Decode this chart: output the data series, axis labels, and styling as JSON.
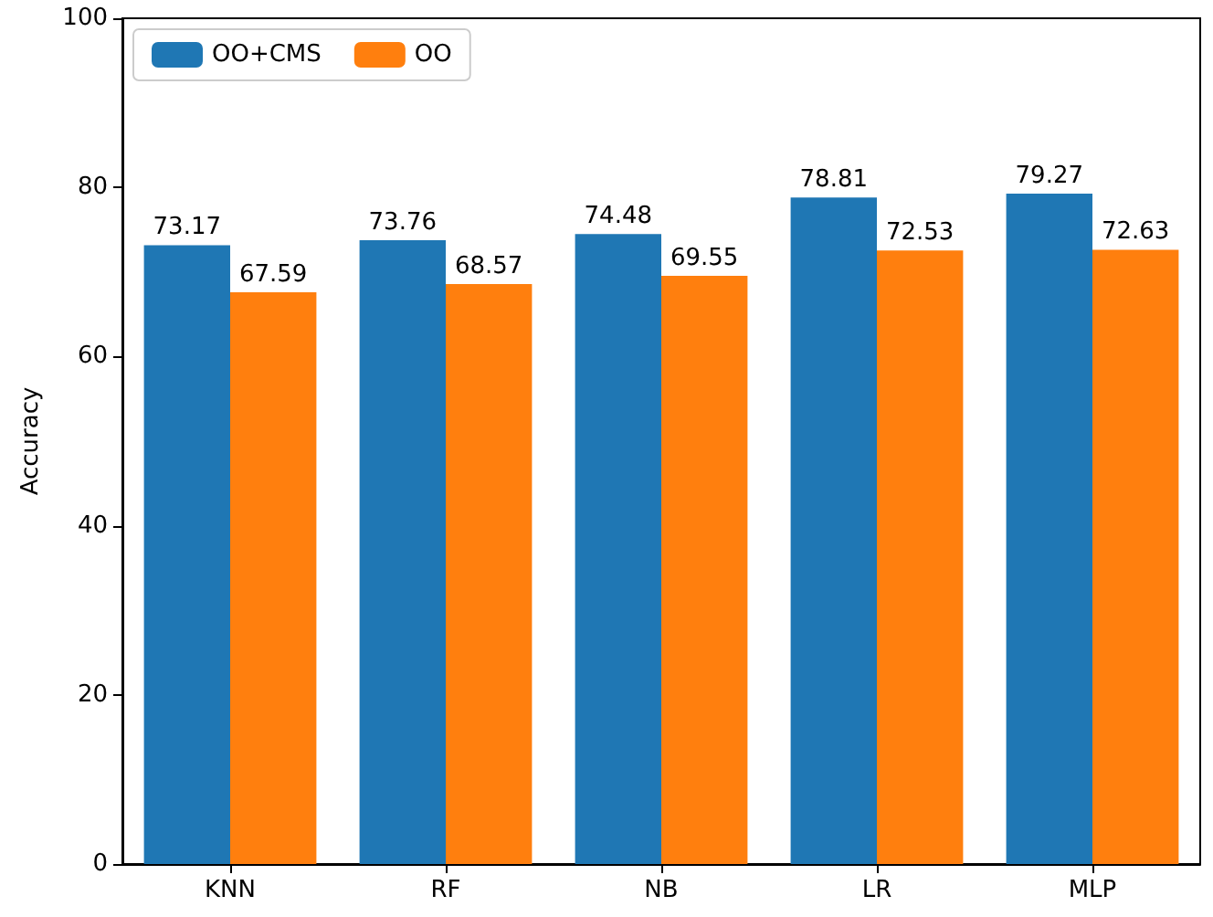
{
  "chart_data": {
    "type": "bar",
    "ylabel": "Accuracy",
    "categories": [
      "KNN",
      "RF",
      "NB",
      "LR",
      "MLP"
    ],
    "series": [
      {
        "name": "OO+CMS",
        "color": "#1f77b4",
        "values": [
          73.17,
          73.76,
          74.48,
          78.81,
          79.27
        ]
      },
      {
        "name": "OO",
        "color": "#ff7f0e",
        "values": [
          67.59,
          68.57,
          69.55,
          72.53,
          72.63
        ]
      }
    ],
    "ylim": [
      0,
      100
    ],
    "yticks": [
      0,
      20,
      40,
      60,
      80,
      100
    ],
    "data_labels": true,
    "legend": "top left",
    "grid": false
  }
}
